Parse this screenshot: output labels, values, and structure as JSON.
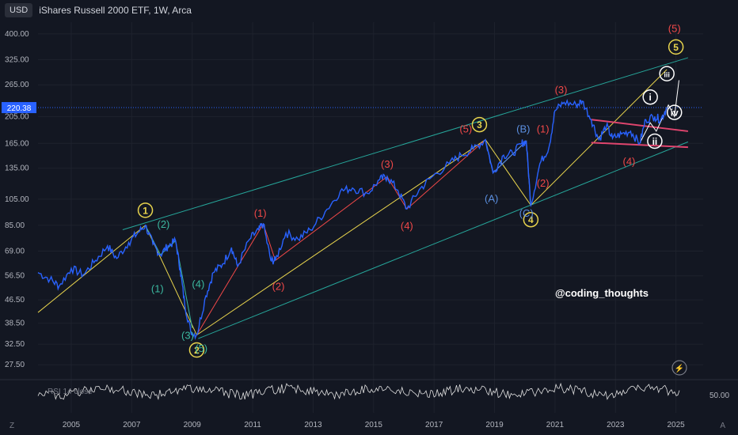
{
  "header": {
    "currency": "USD",
    "title": "iShares Russell 2000 ETF, 1W, Arca"
  },
  "watermark": "@coding_thoughts",
  "oscillator": {
    "label": "RSI 14 close",
    "right_label": "50.00"
  },
  "corners": {
    "left": "Z",
    "right": "A"
  },
  "price_tag": "220.38",
  "chart_data": {
    "type": "line",
    "series": [
      {
        "values": [
          [
            2003.9,
            58
          ],
          [
            2004.3,
            55
          ],
          [
            2004.6,
            52
          ],
          [
            2005.0,
            60
          ],
          [
            2005.4,
            57
          ],
          [
            2005.8,
            64
          ],
          [
            2006.2,
            72
          ],
          [
            2006.5,
            65
          ],
          [
            2006.9,
            74
          ],
          [
            2007.2,
            80
          ],
          [
            2007.45,
            85
          ],
          [
            2007.7,
            73
          ],
          [
            2007.95,
            67
          ],
          [
            2008.2,
            72
          ],
          [
            2008.45,
            75
          ],
          [
            2008.6,
            60
          ],
          [
            2008.75,
            45
          ],
          [
            2008.95,
            36
          ],
          [
            2009.15,
            35
          ],
          [
            2009.45,
            48
          ],
          [
            2009.7,
            58
          ],
          [
            2010.0,
            62
          ],
          [
            2010.3,
            71
          ],
          [
            2010.5,
            61
          ],
          [
            2010.9,
            76
          ],
          [
            2011.2,
            82
          ],
          [
            2011.35,
            86
          ],
          [
            2011.6,
            64
          ],
          [
            2011.75,
            64
          ],
          [
            2012.1,
            80
          ],
          [
            2012.5,
            76
          ],
          [
            2012.9,
            82
          ],
          [
            2013.4,
            95
          ],
          [
            2013.9,
            112
          ],
          [
            2014.3,
            115
          ],
          [
            2014.8,
            110
          ],
          [
            2015.2,
            123
          ],
          [
            2015.45,
            126
          ],
          [
            2015.8,
            113
          ],
          [
            2016.1,
            97
          ],
          [
            2016.5,
            113
          ],
          [
            2016.9,
            125
          ],
          [
            2017.5,
            140
          ],
          [
            2017.9,
            150
          ],
          [
            2018.3,
            158
          ],
          [
            2018.7,
            170
          ],
          [
            2018.95,
            130
          ],
          [
            2019.3,
            150
          ],
          [
            2019.6,
            152
          ],
          [
            2019.9,
            165
          ],
          [
            2020.05,
            168
          ],
          [
            2020.2,
            100
          ],
          [
            2020.5,
            140
          ],
          [
            2020.8,
            160
          ],
          [
            2021.0,
            215
          ],
          [
            2021.3,
            230
          ],
          [
            2021.7,
            225
          ],
          [
            2021.9,
            232
          ],
          [
            2022.2,
            200
          ],
          [
            2022.45,
            170
          ],
          [
            2022.7,
            190
          ],
          [
            2022.9,
            172
          ],
          [
            2023.2,
            178
          ],
          [
            2023.5,
            182
          ],
          [
            2023.8,
            165
          ],
          [
            2024.0,
            200
          ],
          [
            2024.3,
            205
          ],
          [
            2024.5,
            200
          ],
          [
            2024.7,
            220.38
          ]
        ]
      }
    ],
    "ylim": [
      26,
      440
    ],
    "xlim": [
      2003.9,
      2025.9
    ],
    "y_ticks": [
      "400.00",
      "325.00",
      "265.00",
      "205.00",
      "165.00",
      "135.00",
      "105.00",
      "85.00",
      "69.00",
      "56.50",
      "46.50",
      "38.50",
      "32.50",
      "27.50"
    ],
    "y_tick_values": [
      400,
      325,
      265,
      205,
      165,
      135,
      105,
      85,
      69,
      56.5,
      46.5,
      38.5,
      32.5,
      27.5
    ],
    "x_ticks": [
      "2005",
      "2007",
      "2009",
      "2011",
      "2013",
      "2015",
      "2017",
      "2019",
      "2021",
      "2023",
      "2025"
    ],
    "x_tick_values": [
      2005,
      2007,
      2009,
      2011,
      2013,
      2015,
      2017,
      2019,
      2021,
      2023,
      2025
    ],
    "channel": {
      "upper": [
        [
          2006.7,
          82
        ],
        [
          2025.4,
          330
        ]
      ],
      "lower": [
        [
          2009.2,
          34
        ],
        [
          2025.4,
          167
        ]
      ]
    },
    "yellow_path": [
      [
        2003.9,
        42
      ],
      [
        2007.45,
        85
      ],
      [
        2009.15,
        35
      ],
      [
        2018.7,
        170
      ],
      [
        2020.2,
        100
      ],
      [
        2024.7,
        300
      ]
    ],
    "red_path": [
      [
        2009.15,
        35
      ],
      [
        2011.35,
        86
      ],
      [
        2011.75,
        64
      ],
      [
        2015.45,
        126
      ],
      [
        2016.1,
        97
      ],
      [
        2018.7,
        170
      ]
    ],
    "blue_path": [
      [
        2018.7,
        170
      ],
      [
        2018.95,
        130
      ],
      [
        2020.05,
        168
      ],
      [
        2020.2,
        100
      ]
    ],
    "green_path": [
      [
        2007.45,
        85
      ],
      [
        2007.95,
        67
      ],
      [
        2008.45,
        75
      ],
      [
        2009.0,
        37
      ]
    ],
    "triangle": {
      "upper": [
        [
          2022.2,
          200
        ],
        [
          2025.4,
          182
        ]
      ],
      "lower": [
        [
          2022.2,
          166
        ],
        [
          2025.4,
          160
        ]
      ]
    },
    "projection": [
      [
        2023.8,
        165
      ],
      [
        2024.15,
        195
      ],
      [
        2024.35,
        182
      ],
      [
        2024.75,
        225
      ],
      [
        2024.95,
        205
      ],
      [
        2025.1,
        275
      ]
    ],
    "labels": [
      {
        "text": "1",
        "x": 2007.45,
        "y": 96,
        "color": "#e8d44d",
        "circle": true
      },
      {
        "text": "2",
        "x": 2009.15,
        "y": 31,
        "color": "#e8d44d",
        "circle": true
      },
      {
        "text": "3",
        "x": 2018.5,
        "y": 192,
        "color": "#e8d44d",
        "circle": true
      },
      {
        "text": "4",
        "x": 2020.2,
        "y": 89,
        "color": "#e8d44d",
        "circle": true
      },
      {
        "text": "5",
        "x": 2025.0,
        "y": 360,
        "color": "#e8d44d",
        "circle": true
      },
      {
        "text": "(1)",
        "x": 2007.85,
        "y": 51,
        "color": "#3bb8a0",
        "circle": false
      },
      {
        "text": "(2)",
        "x": 2008.05,
        "y": 86,
        "color": "#3bb8a0",
        "circle": false
      },
      {
        "text": "(3)",
        "x": 2008.85,
        "y": 35,
        "color": "#3bb8a0",
        "circle": false
      },
      {
        "text": "(4)",
        "x": 2009.2,
        "y": 53,
        "color": "#3bb8a0",
        "circle": false
      },
      {
        "text": "(5)",
        "x": 2009.3,
        "y": 31.5,
        "color": "#3bb8a0",
        "circle": false
      },
      {
        "text": "(1)",
        "x": 2011.25,
        "y": 94,
        "color": "#f04848",
        "circle": false
      },
      {
        "text": "(2)",
        "x": 2011.85,
        "y": 52,
        "color": "#f04848",
        "circle": false
      },
      {
        "text": "(3)",
        "x": 2015.45,
        "y": 140,
        "color": "#f04848",
        "circle": false
      },
      {
        "text": "(4)",
        "x": 2016.1,
        "y": 85,
        "color": "#f04848",
        "circle": false
      },
      {
        "text": "(5)",
        "x": 2018.05,
        "y": 186,
        "color": "#f04848",
        "circle": false
      },
      {
        "text": "(1)",
        "x": 2020.6,
        "y": 186,
        "color": "#f04848",
        "circle": false
      },
      {
        "text": "(2)",
        "x": 2020.6,
        "y": 120,
        "color": "#f04848",
        "circle": false
      },
      {
        "text": "(3)",
        "x": 2021.2,
        "y": 255,
        "color": "#f04848",
        "circle": false
      },
      {
        "text": "(4)",
        "x": 2023.45,
        "y": 143,
        "color": "#f04848",
        "circle": false
      },
      {
        "text": "(5)",
        "x": 2024.95,
        "y": 420,
        "color": "#f04848",
        "circle": false
      },
      {
        "text": "(A)",
        "x": 2018.9,
        "y": 106,
        "color": "#5b8fe0",
        "circle": false
      },
      {
        "text": "(B)",
        "x": 2019.95,
        "y": 186,
        "color": "#5b8fe0",
        "circle": false
      },
      {
        "text": "(C)",
        "x": 2020.05,
        "y": 94,
        "color": "#5b8fe0",
        "circle": false
      },
      {
        "text": "i",
        "x": 2024.15,
        "y": 240,
        "color": "#ffffff",
        "circle": true
      },
      {
        "text": "ii",
        "x": 2024.3,
        "y": 168,
        "color": "#ffffff",
        "circle": true
      },
      {
        "text": "iii",
        "x": 2024.7,
        "y": 290,
        "color": "#ffffff",
        "circle": true
      },
      {
        "text": "iv",
        "x": 2024.95,
        "y": 212,
        "color": "#ffffff",
        "circle": true
      }
    ]
  }
}
